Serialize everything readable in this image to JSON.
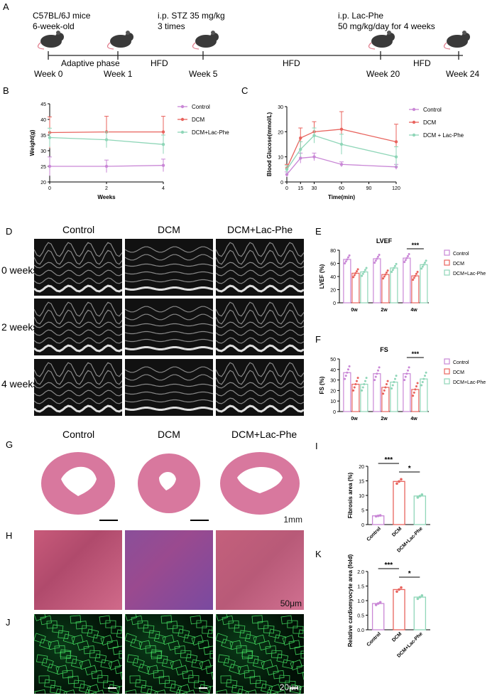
{
  "panels": {
    "A": {
      "letter": "A",
      "notes": [
        "C57BL/6J mice",
        "6-week-old",
        "i.p. STZ 35 mg/kg",
        "3 times",
        "i.p. Lac-Phe",
        "50 mg/kg/day for 4 weeks"
      ],
      "weeks": [
        "Week 0",
        "Week 1",
        "Week 5",
        "Week 20",
        "Week 24"
      ],
      "phases": [
        "Adaptive phase",
        "HFD",
        "HFD",
        "HFD"
      ]
    },
    "D": {
      "letter": "D",
      "columns": [
        "Control",
        "DCM",
        "DCM+Lac-Phe"
      ],
      "rows": [
        "0 weeks",
        "2 weeks",
        "4 weeks"
      ]
    },
    "G": {
      "letter": "G",
      "columns": [
        "Control",
        "DCM",
        "DCM+Lac-Phe"
      ],
      "scale": "1mm"
    },
    "H": {
      "letter": "H",
      "scale": "50μm"
    },
    "J": {
      "letter": "J",
      "scale": "20μm"
    }
  },
  "colors": {
    "control": "#c987d6",
    "dcm": "#e8635d",
    "lacphe": "#8fd6b8"
  },
  "chart_data": [
    {
      "id": "B",
      "letter": "B",
      "type": "line",
      "xlabel": "Weeks",
      "ylabel": "Weight(g)",
      "x": [
        0,
        2,
        4
      ],
      "xlim": [
        0,
        4
      ],
      "ylim": [
        20,
        45
      ],
      "yticks": [
        20,
        25,
        30,
        35,
        40,
        45
      ],
      "xticks": [
        0,
        2,
        4
      ],
      "series": [
        {
          "name": "Control",
          "values": [
            25,
            25,
            25.3
          ],
          "err": [
            3,
            2,
            2
          ]
        },
        {
          "name": "DCM",
          "values": [
            35.8,
            36,
            36
          ],
          "err": [
            5,
            5,
            5
          ]
        },
        {
          "name": "DCM+Lac-Phe",
          "values": [
            34.2,
            33.5,
            32
          ],
          "err": [
            3,
            2.5,
            3
          ]
        }
      ]
    },
    {
      "id": "C",
      "letter": "C",
      "type": "line",
      "xlabel": "Time(min)",
      "ylabel": "Blood Glucose(mmol/L)",
      "x": [
        0,
        15,
        30,
        60,
        120
      ],
      "xlim": [
        0,
        120
      ],
      "ylim": [
        0,
        30
      ],
      "yticks": [
        0,
        10,
        20,
        30
      ],
      "xticks": [
        0,
        15,
        30,
        60,
        90,
        120
      ],
      "series": [
        {
          "name": "Control",
          "values": [
            3,
            9.5,
            10,
            7,
            6
          ],
          "err": [
            1,
            2,
            1.5,
            1,
            1
          ]
        },
        {
          "name": "DCM",
          "values": [
            5.5,
            17.5,
            20,
            21,
            16
          ],
          "err": [
            1.5,
            4,
            4,
            7,
            7
          ]
        },
        {
          "name": "DCM + Lac-Phe",
          "values": [
            5,
            13,
            18.5,
            15,
            10
          ],
          "err": [
            1.5,
            3,
            3,
            4,
            4
          ]
        }
      ]
    },
    {
      "id": "E",
      "letter": "E",
      "type": "bar",
      "title": "LVEF",
      "ylabel": "LVEF (%)",
      "categories": [
        "0w",
        "2w",
        "4w"
      ],
      "ylim": [
        0,
        80
      ],
      "yticks": [
        0,
        20,
        40,
        60,
        80
      ],
      "series": [
        {
          "name": "Control",
          "values": [
            66,
            67,
            68
          ]
        },
        {
          "name": "DCM",
          "values": [
            45,
            43,
            41
          ]
        },
        {
          "name": "DCM+Lac-Phe",
          "values": [
            47,
            53,
            58
          ]
        }
      ],
      "annotation": "***"
    },
    {
      "id": "F",
      "letter": "F",
      "type": "bar",
      "title": "FS",
      "ylabel": "FS (%)",
      "categories": [
        "0w",
        "2w",
        "4w"
      ],
      "ylim": [
        0,
        50
      ],
      "yticks": [
        0,
        10,
        20,
        30,
        40,
        50
      ],
      "series": [
        {
          "name": "Control",
          "values": [
            37,
            36,
            36
          ]
        },
        {
          "name": "DCM",
          "values": [
            26,
            23,
            21
          ]
        },
        {
          "name": "DCM+Lac-Phe",
          "values": [
            26,
            28,
            31
          ]
        }
      ],
      "annotation": "***"
    },
    {
      "id": "I",
      "letter": "I",
      "type": "bar",
      "ylabel": "Fibrosis area (%)",
      "categories": [
        "Control",
        "DCM",
        "DCM+Lac-Phe"
      ],
      "ylim": [
        0,
        20
      ],
      "yticks": [
        0,
        5,
        10,
        15,
        20
      ],
      "values": [
        3,
        14.8,
        9.8
      ],
      "annotations": [
        "***",
        "*"
      ]
    },
    {
      "id": "K",
      "letter": "K",
      "type": "bar",
      "ylabel": "Relative cardiomyocyte area (fold)",
      "categories": [
        "Control",
        "DCM",
        "DCM+Lac-Phe"
      ],
      "ylim": [
        0,
        2.0
      ],
      "yticks": [
        0.0,
        0.5,
        1.0,
        1.5,
        2.0
      ],
      "values": [
        0.9,
        1.38,
        1.12
      ],
      "annotations": [
        "***",
        "*"
      ]
    }
  ]
}
